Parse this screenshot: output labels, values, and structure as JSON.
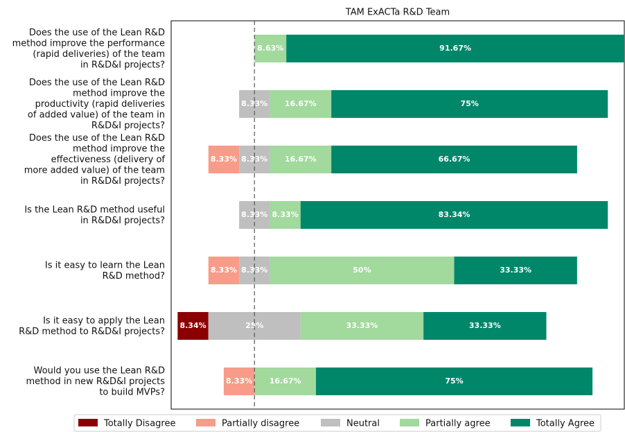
{
  "chart_data": {
    "type": "diverging_bar",
    "title": "TAM ExACTa R&D Team",
    "categories": [
      "Does the use of the Lean R&D\nmethod improve the performance\n(rapid deliveries) of the team\nin R&D&I projects?",
      "Does the use of the Lean R&D\nmethod improve the\nproductivity (rapid deliveries\nof added value) of the team in\nR&D&I projects?",
      "Does the use of the Lean R&D\nmethod improve the\neffectiveness (delivery of\nmore added value) of the team\nin R&D&I projects?",
      "Is the Lean R&D method useful\nin R&D&I projects?",
      "Is it easy to learn the Lean\nR&D method?",
      "Is it easy to apply the Lean\nR&D method to R&D&I projects?",
      "Would you use the Lean R&D\nmethod in new R&D&I projects\nto build MVPs?"
    ],
    "series": [
      {
        "name": "Totally Disagree",
        "color": "#8b0000",
        "values": [
          0,
          0,
          0,
          0,
          0,
          8.34,
          0
        ],
        "value_labels": [
          null,
          null,
          null,
          null,
          null,
          "8.34%",
          null
        ]
      },
      {
        "name": "Partially disagree",
        "color": "#f89c8a",
        "values": [
          0,
          0,
          8.33,
          0,
          8.33,
          0,
          8.33
        ],
        "value_labels": [
          null,
          null,
          "8.33%",
          null,
          "8.33%",
          null,
          "8.33%"
        ]
      },
      {
        "name": "Neutral",
        "color": "#bfbfbf",
        "values": [
          0,
          8.33,
          8.33,
          8.33,
          8.33,
          25,
          0
        ],
        "value_labels": [
          null,
          "8.33%",
          "8.33%",
          "8.33%",
          "8.33%",
          "25%",
          null
        ]
      },
      {
        "name": "Partially agree",
        "color": "#a2d99d",
        "values": [
          8.63,
          16.67,
          16.67,
          8.33,
          50,
          33.33,
          16.67
        ],
        "value_labels": [
          "8.63%",
          "16.67%",
          "16.67%",
          "8.33%",
          "50%",
          "33.33%",
          "16.67%"
        ]
      },
      {
        "name": "Totally Agree",
        "color": "#00876a",
        "values": [
          91.67,
          75,
          66.67,
          83.34,
          33.33,
          33.33,
          75
        ],
        "value_labels": [
          "91.67%",
          "75%",
          "66.67%",
          "83.34%",
          "33.33%",
          "33.33%",
          "75%"
        ]
      }
    ],
    "xlim": [
      -22.6,
      100.3
    ],
    "legend": "bottom"
  }
}
